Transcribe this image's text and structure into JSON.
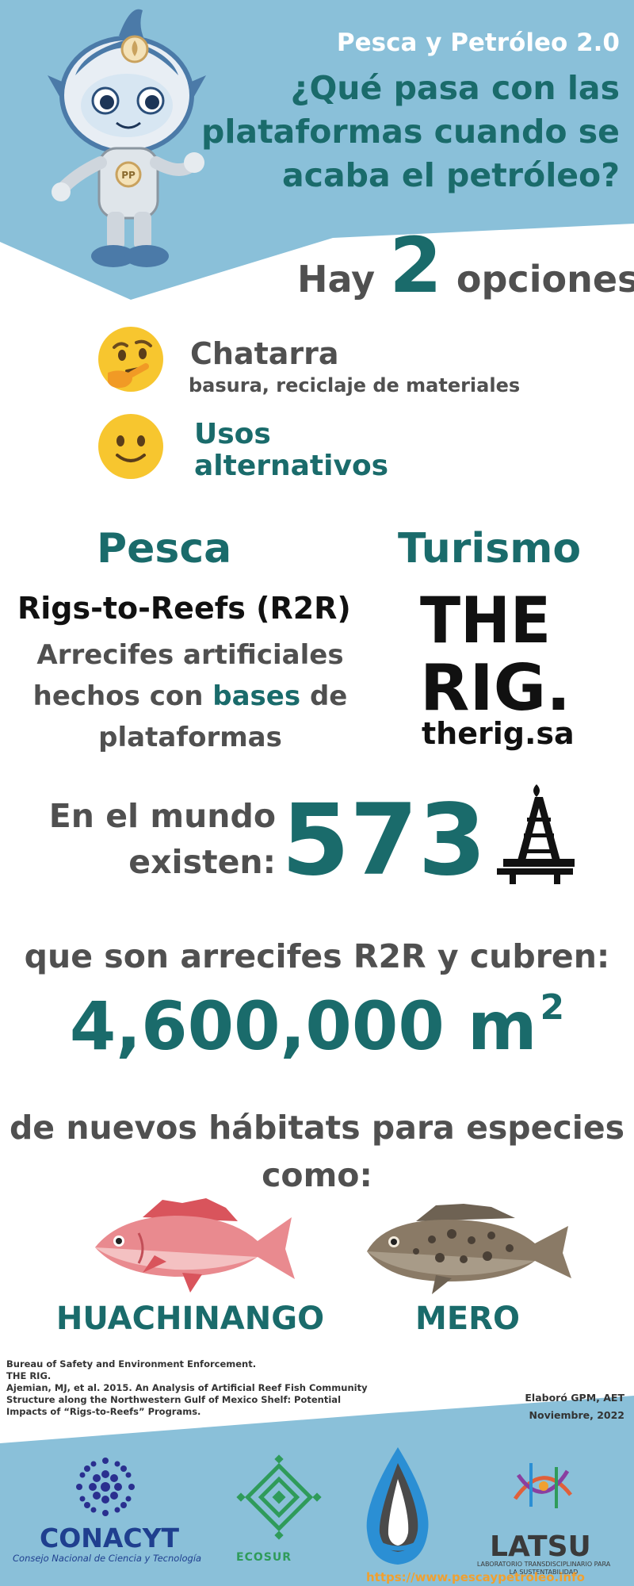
{
  "header": {
    "subtitle": "Pesca y Petróleo 2.0",
    "title": "¿Qué pasa con las plataformas cuando se acaba el petróleo?",
    "mascot_icon": "robot-fish-mascot-icon",
    "mascot_badge": "PP"
  },
  "options": {
    "prefix": "Hay",
    "count": "2",
    "suffix": "opciones",
    "items": [
      {
        "icon": "thinking-face-icon",
        "title": "Chatarra",
        "subtitle": "basura, reciclaje de materiales"
      },
      {
        "icon": "smiling-face-icon",
        "title": "Usos alternativos"
      }
    ]
  },
  "uses": {
    "pesca": {
      "heading": "Pesca",
      "name": "Rigs-to-Reefs (R2R)",
      "desc_1": "Arrecifes artificiales hechos con",
      "desc_highlight": "bases",
      "desc_2": "de plataformas"
    },
    "turismo": {
      "heading": "Turismo",
      "logo_line1": "THE",
      "logo_line2": "RIG.",
      "url": "therig.sa"
    }
  },
  "stats": {
    "world_label": "En el mundo existen:",
    "platform_count": "573",
    "rig_icon": "oil-rig-icon",
    "cover_label": "que son arrecifes R2R y cubren:",
    "area_value": "4,600,000 m",
    "area_unit_sup": "2",
    "habitat_label": "de nuevos hábitats para especies como:"
  },
  "species": [
    {
      "name": "HUACHINANGO",
      "icon": "red-snapper-fish-icon",
      "color": "#e98a8f"
    },
    {
      "name": "MERO",
      "icon": "grouper-fish-icon",
      "color": "#8a7a66"
    }
  ],
  "references": [
    "Bureau of Safety and Environment Enforcement.",
    "THE RIG.",
    "Ajemian, MJ, et al. 2015. An Analysis of Artificial Reef Fish Community",
    "Structure along the Northwestern Gulf of Mexico Shelf: Potential",
    "Impacts of “Rigs-to-Reefs” Programs."
  ],
  "credits": {
    "author": "Elaboró GPM, AET",
    "date": "Noviembre, 2022"
  },
  "footer": {
    "conacyt_name": "CONACYT",
    "conacyt_sub": "Consejo Nacional de Ciencia y Tecnología",
    "ecosur_name": "ECOSUR",
    "latsu_name": "LATSU",
    "latsu_sub": "LABORATORIO TRANSDISCIPLINARIO PARA LA SUSTENTABILIDAD",
    "website": "https://www.pescaypetroleo.info"
  },
  "colors": {
    "sky_blue": "#8ac0d9",
    "teal": "#1a6b6b",
    "dark_text": "#505050"
  }
}
